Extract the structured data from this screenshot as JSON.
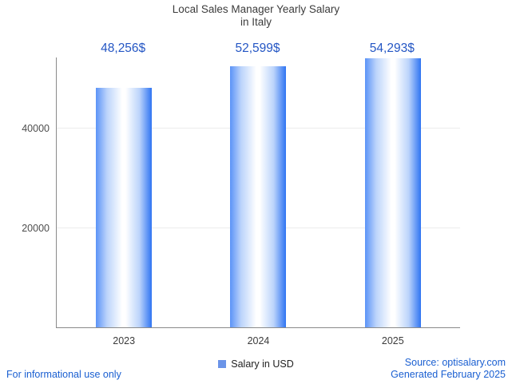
{
  "title": {
    "line1": "Local Sales Manager Yearly Salary",
    "line2": "in Italy"
  },
  "chart_data": {
    "type": "bar",
    "title": "Local Sales Manager Yearly Salary in Italy",
    "categories": [
      "2023",
      "2024",
      "2025"
    ],
    "values": [
      48256,
      52599,
      54293
    ],
    "value_labels": [
      "48,256$",
      "52,599$",
      "54,293$"
    ],
    "series_name": "Salary in USD",
    "xlabel": "",
    "ylabel": "",
    "ylim": [
      0,
      54400
    ],
    "yticks": [
      20000,
      40000
    ],
    "grid": true,
    "legend_position": "bottom"
  },
  "legend": {
    "label": "Salary in USD",
    "swatch_color": "#6b94e8"
  },
  "footer": {
    "disclaimer": "For informational use only",
    "source": "Source: optisalary.com",
    "generated": "Generated February 2025"
  },
  "colors": {
    "bar_edge_left": "#5b93f7",
    "bar_inner_light": "#bcd4fb",
    "bar_center": "#ffffff",
    "bar_edge_right": "#2f74f2",
    "value_label": "#2456c4",
    "footer_text": "#1a5fd1",
    "title_text": "#3c3c3c",
    "gridline": "#ececec",
    "axis_line": "#8a8a8a"
  }
}
